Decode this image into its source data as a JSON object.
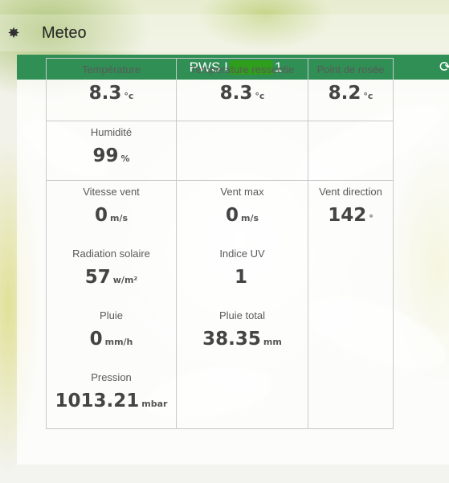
{
  "app": {
    "title": "Meteo",
    "icon": "sun-icon"
  },
  "panel": {
    "title_prefix": "PWS I",
    "title_suffix": "1",
    "refresh_icon": "refresh-icon",
    "header_color": "#2f8f55"
  },
  "cells": {
    "temperature": {
      "label": "Température",
      "value": "8.3",
      "unit": "°c"
    },
    "feels_like": {
      "label": "Température ressentie",
      "value": "8.3",
      "unit": "°c"
    },
    "dew_point": {
      "label": "Point de rosée",
      "value": "8.2",
      "unit": "°c"
    },
    "humidity": {
      "label": "Humidité",
      "value": "99",
      "unit": "%"
    },
    "wind_speed": {
      "label": "Vitesse vent",
      "value": "0",
      "unit": "m/s"
    },
    "wind_max": {
      "label": "Vent max",
      "value": "0",
      "unit": "m/s"
    },
    "wind_direction": {
      "label": "Vent direction",
      "value": "142",
      "unit": "°"
    },
    "solar_radiation": {
      "label": "Radiation solaire",
      "value": "57",
      "unit": "w/m²"
    },
    "uv_index": {
      "label": "Indice UV",
      "value": "1",
      "unit": ""
    },
    "rain": {
      "label": "Pluie",
      "value": "0",
      "unit": "mm/h"
    },
    "rain_total": {
      "label": "Pluie total",
      "value": "38.35",
      "unit": "mm"
    },
    "pressure": {
      "label": "Pression",
      "value": "1013.21",
      "unit": "mbar"
    }
  }
}
